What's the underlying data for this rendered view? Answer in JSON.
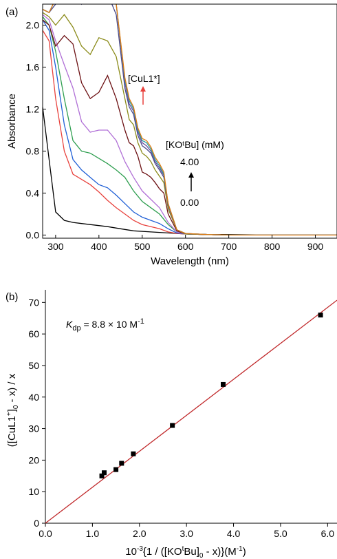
{
  "chart_data": [
    {
      "panel_label": "(a)",
      "type": "line",
      "xlabel": "Wavelength (nm)",
      "ylabel": "Absorbance",
      "xlim": [
        270,
        950
      ],
      "ylim": [
        -0.03,
        2.2
      ],
      "xticks": [
        300,
        400,
        500,
        600,
        700,
        800,
        900
      ],
      "yticks": [
        0.0,
        0.4,
        0.8,
        1.2,
        1.6,
        2.0
      ],
      "ytick_labels": [
        "0.0",
        "0.4",
        "0.8",
        "1.2",
        "1.6",
        "2.0"
      ],
      "grid": false,
      "annotations": {
        "species_label": "[CuL1*]",
        "titrant_label": "[KOᵗBu] (mM)",
        "titrant_max": "4.00",
        "titrant_min": "0.00"
      },
      "series_colors": [
        "#000000",
        "#e8413c",
        "#1f5fd6",
        "#2e9e4f",
        "#b06fd6",
        "#6b0f12",
        "#8b8b1a",
        "#4a4a8a",
        "#6a4fa0",
        "#2aa0a0",
        "#e07a10"
      ],
      "series": [
        {
          "x": [
            270,
            285,
            300,
            320,
            340,
            360,
            380,
            400,
            420,
            450,
            480,
            520,
            560,
            600,
            650,
            700,
            800,
            950
          ],
          "y": [
            1.22,
            0.72,
            0.22,
            0.14,
            0.12,
            0.11,
            0.1,
            0.09,
            0.08,
            0.06,
            0.04,
            0.03,
            0.02,
            0.01,
            0.005,
            0.005,
            0.0,
            0.0
          ]
        },
        {
          "x": [
            270,
            285,
            300,
            320,
            340,
            360,
            380,
            400,
            420,
            440,
            460,
            480,
            500,
            520,
            540,
            560,
            580,
            600,
            650,
            700,
            800,
            950
          ],
          "y": [
            1.95,
            1.85,
            1.3,
            0.8,
            0.58,
            0.53,
            0.48,
            0.41,
            0.33,
            0.26,
            0.2,
            0.14,
            0.1,
            0.08,
            0.06,
            0.03,
            0.015,
            0.01,
            0.005,
            0.0,
            0.0,
            0.0
          ]
        },
        {
          "x": [
            270,
            285,
            300,
            320,
            340,
            360,
            380,
            400,
            420,
            440,
            460,
            480,
            500,
            520,
            540,
            560,
            580,
            600,
            650,
            700,
            800,
            950
          ],
          "y": [
            2.05,
            1.95,
            1.6,
            1.05,
            0.72,
            0.62,
            0.55,
            0.48,
            0.45,
            0.38,
            0.3,
            0.22,
            0.17,
            0.14,
            0.11,
            0.06,
            0.02,
            0.01,
            0.005,
            0.0,
            0.0,
            0.0
          ]
        },
        {
          "x": [
            270,
            285,
            300,
            320,
            340,
            360,
            380,
            400,
            420,
            440,
            460,
            480,
            500,
            520,
            540,
            560,
            580,
            600,
            650,
            700,
            800,
            950
          ],
          "y": [
            2.08,
            2.0,
            1.75,
            1.3,
            0.9,
            0.8,
            0.78,
            0.73,
            0.68,
            0.62,
            0.55,
            0.42,
            0.32,
            0.26,
            0.2,
            0.1,
            0.03,
            0.01,
            0.005,
            0.0,
            0.0,
            0.0
          ]
        },
        {
          "x": [
            270,
            285,
            300,
            320,
            340,
            360,
            380,
            400,
            420,
            440,
            460,
            480,
            500,
            520,
            540,
            560,
            580,
            600,
            650,
            700,
            800,
            950
          ],
          "y": [
            2.1,
            2.05,
            1.85,
            1.62,
            1.4,
            1.08,
            0.98,
            1.0,
            1.0,
            0.9,
            0.7,
            0.55,
            0.42,
            0.34,
            0.26,
            0.12,
            0.03,
            0.01,
            0.005,
            0.0,
            0.0,
            0.0
          ]
        },
        {
          "x": [
            270,
            285,
            300,
            320,
            340,
            360,
            380,
            400,
            420,
            440,
            460,
            470,
            480,
            490,
            500,
            510,
            520,
            530,
            540,
            550,
            560,
            580,
            600,
            650,
            700,
            800,
            950
          ],
          "y": [
            2.05,
            2.0,
            1.8,
            1.9,
            1.82,
            1.45,
            1.3,
            1.36,
            1.52,
            1.3,
            1.0,
            0.88,
            0.85,
            0.75,
            0.6,
            0.58,
            0.55,
            0.5,
            0.44,
            0.4,
            0.2,
            0.04,
            0.01,
            0.005,
            0.0,
            0.0,
            0.0
          ]
        },
        {
          "x": [
            270,
            285,
            300,
            320,
            340,
            360,
            380,
            400,
            420,
            440,
            460,
            470,
            480,
            490,
            500,
            510,
            520,
            530,
            540,
            550,
            560,
            580,
            600,
            650,
            700,
            800,
            950
          ],
          "y": [
            2.12,
            2.08,
            2.0,
            2.1,
            1.98,
            1.8,
            1.72,
            1.88,
            1.85,
            1.7,
            1.3,
            1.1,
            1.05,
            0.88,
            0.78,
            0.75,
            0.7,
            0.62,
            0.56,
            0.5,
            0.25,
            0.05,
            0.01,
            0.005,
            0.0,
            0.0,
            0.0
          ]
        },
        {
          "x": [
            270,
            285,
            300,
            320,
            340,
            360,
            380,
            400,
            420,
            440,
            460,
            470,
            480,
            490,
            500,
            510,
            520,
            530,
            540,
            550,
            560,
            580,
            600,
            650,
            700,
            800,
            950
          ],
          "y": [
            2.15,
            2.12,
            2.2,
            2.35,
            2.4,
            2.2,
            2.3,
            2.4,
            2.3,
            2.1,
            1.4,
            1.22,
            1.15,
            0.95,
            0.85,
            0.82,
            0.78,
            0.68,
            0.62,
            0.55,
            0.28,
            0.05,
            0.015,
            0.005,
            0.0,
            0.0,
            0.0
          ]
        },
        {
          "x": [
            270,
            285,
            300,
            320,
            340,
            360,
            380,
            400,
            420,
            440,
            460,
            470,
            480,
            490,
            500,
            510,
            520,
            530,
            540,
            550,
            560,
            580,
            600,
            650,
            700,
            800,
            950
          ],
          "y": [
            2.15,
            2.12,
            2.25,
            2.4,
            2.4,
            2.3,
            2.35,
            2.4,
            2.4,
            2.2,
            1.45,
            1.25,
            1.18,
            0.98,
            0.88,
            0.85,
            0.8,
            0.7,
            0.64,
            0.57,
            0.29,
            0.05,
            0.015,
            0.005,
            0.0,
            0.0,
            0.0
          ]
        },
        {
          "x": [
            270,
            285,
            300,
            320,
            340,
            360,
            380,
            400,
            420,
            440,
            460,
            470,
            480,
            490,
            500,
            510,
            520,
            530,
            540,
            550,
            560,
            580,
            600,
            650,
            700,
            800,
            950
          ],
          "y": [
            2.15,
            2.12,
            2.25,
            2.4,
            2.4,
            2.3,
            2.35,
            2.4,
            2.4,
            2.2,
            1.48,
            1.28,
            1.2,
            1.0,
            0.9,
            0.88,
            0.82,
            0.72,
            0.66,
            0.58,
            0.3,
            0.05,
            0.015,
            0.005,
            0.0,
            0.0,
            0.0
          ]
        },
        {
          "x": [
            270,
            285,
            300,
            320,
            340,
            360,
            380,
            400,
            420,
            440,
            460,
            470,
            480,
            490,
            500,
            510,
            520,
            530,
            540,
            550,
            560,
            580,
            600,
            650,
            700,
            800,
            950
          ],
          "y": [
            2.15,
            2.12,
            2.25,
            2.4,
            2.4,
            2.3,
            2.35,
            2.4,
            2.4,
            2.2,
            1.5,
            1.3,
            1.22,
            1.02,
            0.92,
            0.9,
            0.84,
            0.74,
            0.68,
            0.6,
            0.3,
            0.05,
            0.015,
            0.005,
            0.0,
            0.0,
            0.0
          ]
        }
      ]
    },
    {
      "panel_label": "(b)",
      "type": "scatter",
      "xlabel": "10⁻³{1 / ([KOᵗBu]₀ - x)}(M⁻¹)",
      "ylabel": "([CuL1⁺]₀ - x) / x",
      "xlim": [
        0.0,
        6.2
      ],
      "ylim": [
        0,
        74
      ],
      "xticks": [
        0.0,
        1.0,
        2.0,
        3.0,
        4.0,
        5.0,
        6.0
      ],
      "xtick_labels": [
        "0.0",
        "1.0",
        "2.0",
        "3.0",
        "4.0",
        "5.0",
        "6.0"
      ],
      "yticks": [
        0,
        10,
        20,
        30,
        40,
        50,
        60,
        70
      ],
      "grid": false,
      "annotation": "Kdp = 8.8 × 10 M⁻¹",
      "points": {
        "x": [
          1.2,
          1.25,
          1.5,
          1.62,
          1.87,
          2.7,
          3.78,
          5.85
        ],
        "y": [
          15.0,
          16.0,
          17.0,
          19.0,
          22.0,
          31.0,
          44.0,
          66.0
        ]
      },
      "fit_line": {
        "x": [
          0.0,
          6.2
        ],
        "y": [
          0.0,
          70.7
        ],
        "color": "#c0282a"
      }
    }
  ]
}
